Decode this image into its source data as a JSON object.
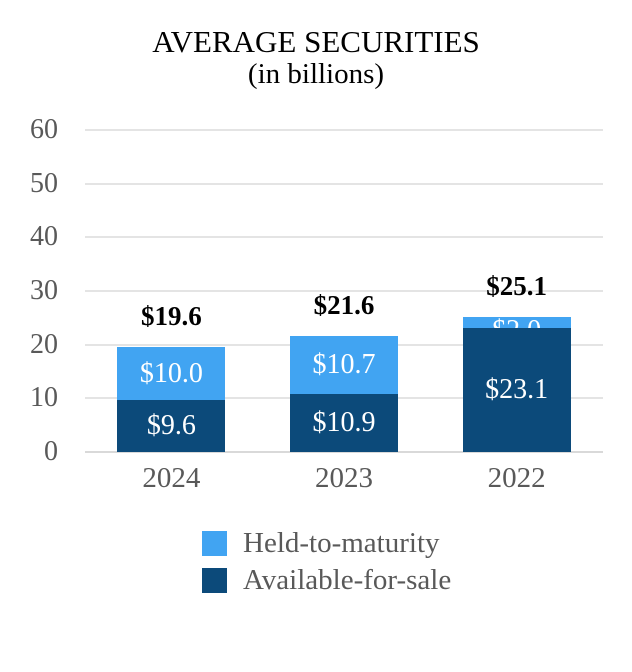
{
  "colors": {
    "held_to_maturity": "#41a4f2",
    "available_for_sale": "#0c4a7a",
    "gridline": "#e4e4e4",
    "axis_line": "#d9d9d9",
    "axis_label_gray": "#595959",
    "segment_label": "#ffffff",
    "total_label": "#000000"
  },
  "chart_data": {
    "type": "bar",
    "stacked": true,
    "title": "AVERAGE SECURITIES",
    "subtitle": "(in billions)",
    "categories": [
      "2024",
      "2023",
      "2022"
    ],
    "series": [
      {
        "name": "Held-to-maturity",
        "color": "#41a4f2",
        "values": [
          10.0,
          10.7,
          2.0
        ],
        "data_labels": [
          "$10.0",
          "$10.7",
          "$2.0"
        ]
      },
      {
        "name": "Available-for-sale",
        "color": "#0c4a7a",
        "values": [
          9.6,
          10.9,
          23.1
        ],
        "data_labels": [
          "$9.6",
          "$10.9",
          "$23.1"
        ]
      }
    ],
    "totals": [
      19.6,
      21.6,
      25.1
    ],
    "total_labels": [
      "$19.6",
      "$21.6",
      "$25.1"
    ],
    "xlabel": "",
    "ylabel": "",
    "ylim": [
      0,
      60
    ],
    "yticks": [
      0,
      10,
      20,
      30,
      40,
      50,
      60
    ],
    "grid": true,
    "legend_position": "bottom"
  }
}
